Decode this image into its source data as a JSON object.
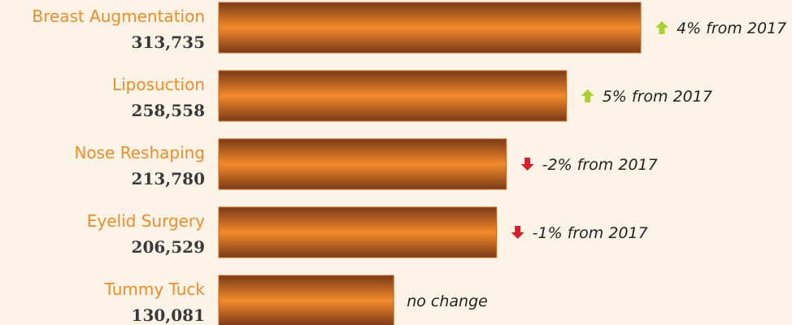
{
  "chart_data": {
    "type": "bar",
    "orientation": "horizontal",
    "categories": [
      "Breast Augmentation",
      "Liposuction",
      "Nose Reshaping",
      "Eyelid Surgery",
      "Tummy Tuck"
    ],
    "value_labels": [
      "313,735",
      "258,558",
      "213,780",
      "206,529",
      "130,081"
    ],
    "values": [
      313735,
      258558,
      213780,
      206529,
      130081
    ],
    "changes": [
      {
        "direction": "up",
        "text": "4% from 2017"
      },
      {
        "direction": "up",
        "text": "5% from 2017"
      },
      {
        "direction": "down",
        "text": "-2% from 2017"
      },
      {
        "direction": "down",
        "text": "-1% from 2017"
      },
      {
        "direction": "none",
        "text": "no change"
      }
    ],
    "xlim": [
      0,
      330000
    ],
    "grid": false
  },
  "colors": {
    "background": "#fdf4e7",
    "bar_dark": "#7a3a16",
    "bar_light": "#f28a2c",
    "label": "#f08c28",
    "up_arrow": "#a8d032",
    "down_arrow": "#d51f2e"
  },
  "icons": {
    "up": "arrow-up-icon",
    "down": "arrow-down-icon"
  }
}
